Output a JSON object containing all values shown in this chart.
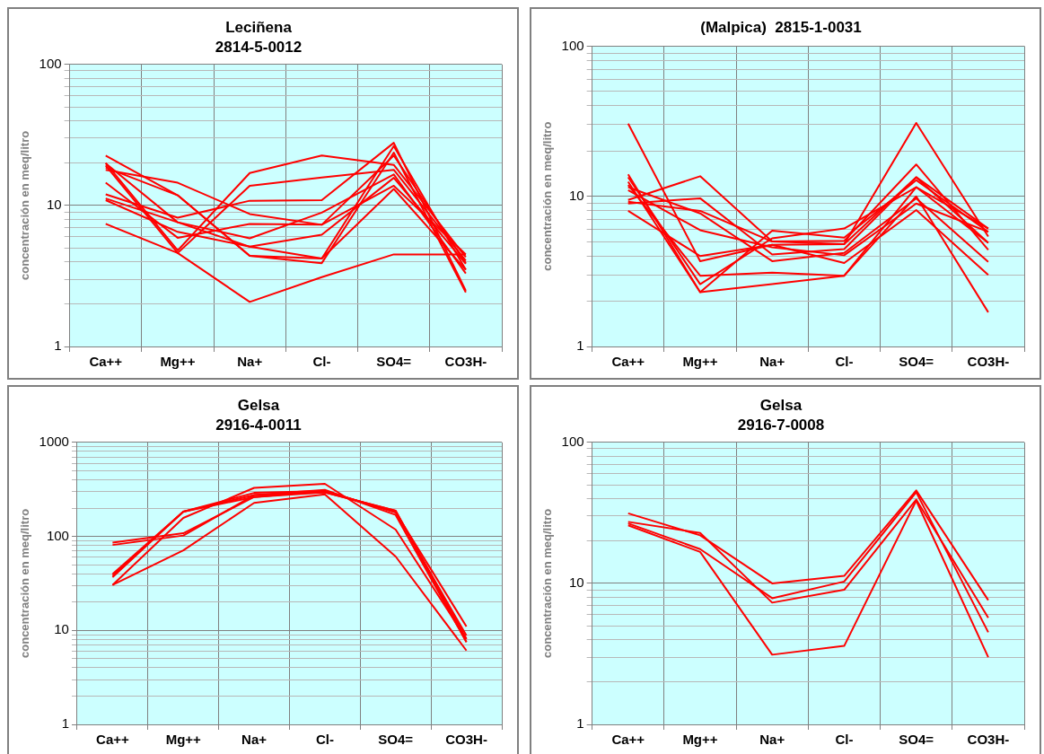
{
  "chart_data": [
    {
      "type": "line",
      "title": "Leciñena",
      "subtitle": "2814-5-0012",
      "ylabel": "concentración en meq/litro",
      "categories": [
        "Ca++",
        "Mg++",
        "Na+",
        "Cl-",
        "SO4=",
        "CO3H-"
      ],
      "log": "y",
      "ylim": [
        1,
        100
      ],
      "yticks": [
        1,
        {
          "value": 2,
          "label": null
        },
        {
          "value": 3,
          "label": null
        },
        {
          "value": 4,
          "label": null
        },
        {
          "value": 5,
          "label": null
        },
        {
          "value": 6,
          "label": null
        },
        {
          "value": 7,
          "label": null
        },
        {
          "value": 8,
          "label": null
        },
        {
          "value": 9,
          "label": null
        },
        10,
        {
          "value": 20,
          "label": null
        },
        {
          "value": 30,
          "label": null
        },
        {
          "value": 40,
          "label": null
        },
        {
          "value": 50,
          "label": null
        },
        {
          "value": 60,
          "label": null
        },
        {
          "value": 70,
          "label": null
        },
        {
          "value": 80,
          "label": null
        },
        {
          "value": 90,
          "label": null
        },
        100
      ],
      "grid": true,
      "legend": false,
      "marker": "none",
      "line_style": "solid",
      "series": [
        {
          "color": "#ff0000",
          "values": [
            7.4,
            4.6,
            2.07,
            3.1,
            4.5,
            4.5
          ]
        },
        {
          "color": "#ff0000",
          "values": [
            22.6,
            11.8,
            4.4,
            4.2,
            26.4,
            3.5
          ]
        },
        {
          "color": "#ff0000",
          "values": [
            17.9,
            14.5,
            8.7,
            7.3,
            22.6,
            3.9
          ]
        },
        {
          "color": "#ff0000",
          "values": [
            20,
            4.8,
            17,
            22.6,
            19.4,
            4.3
          ]
        },
        {
          "color": "#ff0000",
          "values": [
            19.2,
            4.6,
            13.8,
            15.8,
            17.9,
            4.06
          ]
        },
        {
          "color": "#ff0000",
          "values": [
            12,
            8.2,
            10.8,
            10.9,
            27.8,
            2.48
          ]
        },
        {
          "color": "#ff0000",
          "values": [
            11.2,
            7.6,
            5.85,
            8.9,
            16.6,
            3.3
          ]
        },
        {
          "color": "#ff0000",
          "values": [
            10.9,
            6.5,
            5.1,
            6.2,
            15.7,
            3.86
          ]
        },
        {
          "color": "#ff0000",
          "values": [
            14.5,
            5.9,
            7.4,
            7.3,
            13.8,
            4.5
          ]
        },
        {
          "color": "#ff0000",
          "values": [
            18.6,
            11.8,
            4.4,
            3.9,
            23.7,
            2.42
          ]
        },
        {
          "color": "#ff0000",
          "values": [
            19.9,
            7.6,
            5.1,
            4.2,
            13.1,
            3.5
          ]
        }
      ]
    },
    {
      "type": "line",
      "title": "(Malpica)  2815-1-0031",
      "ylabel": "concentración en meq/litro",
      "categories": [
        "Ca++",
        "Mg++",
        "Na+",
        "Cl-",
        "SO4=",
        "CO3H-"
      ],
      "log": "y",
      "ylim": [
        1,
        100
      ],
      "yticks": [
        1,
        {
          "value": 2,
          "label": null
        },
        {
          "value": 3,
          "label": null
        },
        {
          "value": 4,
          "label": null
        },
        {
          "value": 5,
          "label": null
        },
        {
          "value": 6,
          "label": null
        },
        {
          "value": 7,
          "label": null
        },
        {
          "value": 8,
          "label": null
        },
        {
          "value": 9,
          "label": null
        },
        10,
        {
          "value": 20,
          "label": null
        },
        {
          "value": 30,
          "label": null
        },
        {
          "value": 40,
          "label": null
        },
        {
          "value": 50,
          "label": null
        },
        {
          "value": 60,
          "label": null
        },
        {
          "value": 70,
          "label": null
        },
        {
          "value": 80,
          "label": null
        },
        {
          "value": 90,
          "label": null
        },
        100
      ],
      "grid": true,
      "legend": false,
      "marker": "none",
      "line_style": "solid",
      "series": [
        {
          "color": "#ff0000",
          "values": [
            30.5,
            3.7,
            4.75,
            4.8,
            30.8,
            5.4
          ]
        },
        {
          "color": "#ff0000",
          "values": [
            9.45,
            13.6,
            5,
            5.05,
            16.3,
            4.4
          ]
        },
        {
          "color": "#ff0000",
          "values": [
            8.95,
            9.7,
            4.1,
            4.45,
            13.4,
            6.1
          ]
        },
        {
          "color": "#ff0000",
          "values": [
            14,
            2.3,
            5.9,
            5.3,
            12.8,
            5.8
          ]
        },
        {
          "color": "#ff0000",
          "values": [
            13.4,
            2.6,
            5.25,
            6.1,
            11.5,
            4.9
          ]
        },
        {
          "color": "#ff0000",
          "values": [
            11.9,
            2.96,
            3.1,
            2.96,
            10,
            1.69
          ]
        },
        {
          "color": "#ff0000",
          "values": [
            11.5,
            7.7,
            3.7,
            4.2,
            9.7,
            3.66
          ]
        },
        {
          "color": "#ff0000",
          "values": [
            11,
            5.95,
            4.57,
            4.05,
            8.95,
            5.8
          ]
        },
        {
          "color": "#ff0000",
          "values": [
            8,
            4,
            4.75,
            3.6,
            8.1,
            3
          ]
        },
        {
          "color": "#ff0000",
          "values": [
            9.2,
            8,
            5,
            4.8,
            13.4,
            4.9
          ]
        },
        {
          "color": "#ff0000",
          "values": [
            12.5,
            2.3,
            2.6,
            2.96,
            11.5,
            6.1
          ]
        }
      ]
    },
    {
      "type": "line",
      "title": "Gelsa",
      "subtitle": "2916-4-0011",
      "ylabel": "concentración en meq/litro",
      "categories": [
        "Ca++",
        "Mg++",
        "Na+",
        "Cl-",
        "SO4=",
        "CO3H-"
      ],
      "log": "y",
      "ylim": [
        1,
        1000
      ],
      "yticks": [
        1,
        {
          "value": 2,
          "label": null
        },
        {
          "value": 3,
          "label": null
        },
        {
          "value": 4,
          "label": null
        },
        {
          "value": 5,
          "label": null
        },
        {
          "value": 6,
          "label": null
        },
        {
          "value": 7,
          "label": null
        },
        {
          "value": 8,
          "label": null
        },
        {
          "value": 9,
          "label": null
        },
        10,
        {
          "value": 20,
          "label": null
        },
        {
          "value": 30,
          "label": null
        },
        {
          "value": 40,
          "label": null
        },
        {
          "value": 50,
          "label": null
        },
        {
          "value": 60,
          "label": null
        },
        {
          "value": 70,
          "label": null
        },
        {
          "value": 80,
          "label": null
        },
        {
          "value": 90,
          "label": null
        },
        100,
        {
          "value": 200,
          "label": null
        },
        {
          "value": 300,
          "label": null
        },
        {
          "value": 400,
          "label": null
        },
        {
          "value": 500,
          "label": null
        },
        {
          "value": 600,
          "label": null
        },
        {
          "value": 700,
          "label": null
        },
        {
          "value": 800,
          "label": null
        },
        {
          "value": 900,
          "label": null
        },
        1000
      ],
      "grid": true,
      "legend": false,
      "marker": "none",
      "line_style": "solid",
      "series": [
        {
          "color": "#ff0000",
          "values": [
            81,
            102,
            275,
            294,
            187,
            8.1
          ]
        },
        {
          "color": "#ff0000",
          "values": [
            86,
            108,
            262,
            304,
            180,
            11
          ]
        },
        {
          "color": "#ff0000",
          "values": [
            38,
            183,
            290,
            304,
            180,
            8.8
          ]
        },
        {
          "color": "#ff0000",
          "values": [
            36.7,
            183,
            275,
            312,
            169,
            7.5
          ]
        },
        {
          "color": "#ff0000",
          "values": [
            30.4,
            157,
            328,
            362,
            118,
            8.1
          ]
        },
        {
          "color": "#ff0000",
          "values": [
            30.4,
            71,
            227,
            280,
            61,
            6.1
          ]
        },
        {
          "color": "#ff0000",
          "values": [
            39.8,
            183,
            262,
            294,
            187,
            7.5
          ]
        }
      ]
    },
    {
      "type": "line",
      "title": "Gelsa",
      "subtitle": "2916-7-0008",
      "ylabel": "concentración en meq/litro",
      "categories": [
        "Ca++",
        "Mg++",
        "Na+",
        "Cl-",
        "SO4=",
        "CO3H-"
      ],
      "log": "y",
      "ylim": [
        1,
        100
      ],
      "yticks": [
        1,
        {
          "value": 2,
          "label": null
        },
        {
          "value": 3,
          "label": null
        },
        {
          "value": 4,
          "label": null
        },
        {
          "value": 5,
          "label": null
        },
        {
          "value": 6,
          "label": null
        },
        {
          "value": 7,
          "label": null
        },
        {
          "value": 8,
          "label": null
        },
        {
          "value": 9,
          "label": null
        },
        10,
        {
          "value": 20,
          "label": null
        },
        {
          "value": 30,
          "label": null
        },
        {
          "value": 40,
          "label": null
        },
        {
          "value": 50,
          "label": null
        },
        {
          "value": 60,
          "label": null
        },
        {
          "value": 70,
          "label": null
        },
        {
          "value": 80,
          "label": null
        },
        {
          "value": 90,
          "label": null
        },
        100
      ],
      "grid": true,
      "legend": false,
      "marker": "none",
      "line_style": "solid",
      "series": [
        {
          "color": "#ff0000",
          "values": [
            31.4,
            21.9,
            10,
            11.3,
            45.6,
            7.6
          ]
        },
        {
          "color": "#ff0000",
          "values": [
            27.3,
            22.8,
            7.3,
            9,
            39.3,
            5.7
          ]
        },
        {
          "color": "#ff0000",
          "values": [
            26.6,
            17.5,
            7.85,
            10.3,
            44.3,
            4.5
          ]
        },
        {
          "color": "#ff0000",
          "values": [
            25.8,
            16.7,
            3.12,
            3.6,
            38.6,
            3
          ]
        }
      ]
    }
  ]
}
